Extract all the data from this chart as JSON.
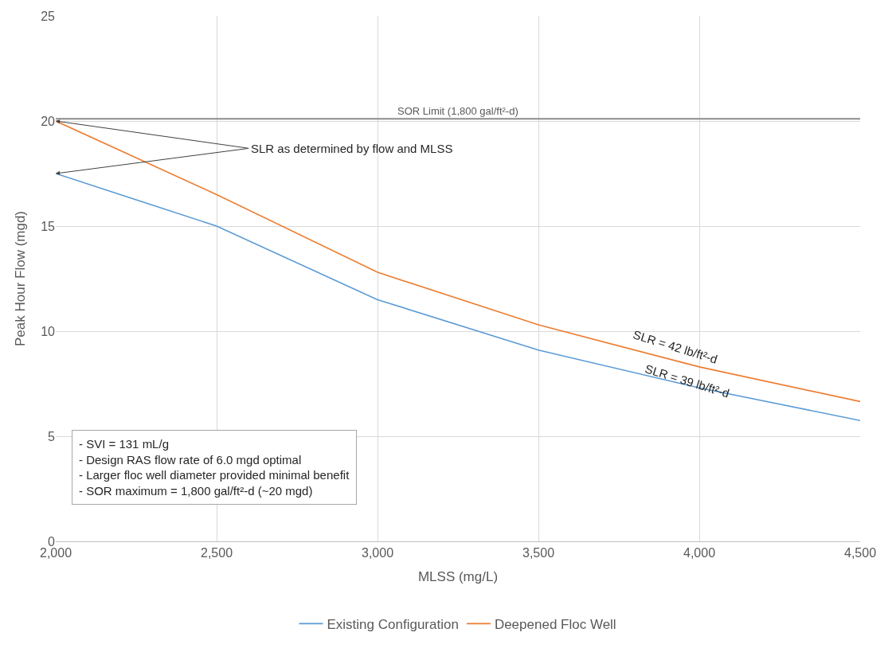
{
  "chart_data": {
    "type": "line",
    "xlabel": "MLSS (mg/L)",
    "ylabel": "Peak Hour Flow (mgd)",
    "x": [
      2000,
      2500,
      3000,
      3500,
      4000,
      4500
    ],
    "series": [
      {
        "name": "Existing Configuration",
        "color": "#5b9bd5",
        "values": [
          17.5,
          15.0,
          11.5,
          9.1,
          7.3,
          5.75
        ]
      },
      {
        "name": "Deepened Floc Well",
        "color": "#ed7d31",
        "values": [
          20.0,
          16.5,
          12.8,
          10.3,
          8.3,
          6.65
        ]
      }
    ],
    "xlim": [
      2000,
      4500
    ],
    "xticks": [
      {
        "value": 2000,
        "label": "2,000"
      },
      {
        "value": 2500,
        "label": "2,500"
      },
      {
        "value": 3000,
        "label": "3,000"
      },
      {
        "value": 3500,
        "label": "3,500"
      },
      {
        "value": 4000,
        "label": "4,000"
      },
      {
        "value": 4500,
        "label": "4,500"
      }
    ],
    "ylim": [
      0,
      25
    ],
    "yticks": [
      0,
      5,
      10,
      15,
      20,
      25
    ],
    "ref_lines": [
      {
        "axis": "y",
        "value": 20.1,
        "label": "SOR Limit (1,800 gal/ft²-d)",
        "color": "#8c8c8c"
      }
    ],
    "annotations": [
      {
        "text": "SLR as determined by flow and MLSS",
        "x": 2000,
        "y": 20.0
      },
      "SLR = 42 lb/ft²-d",
      "SLR = 39 lb/ft²-d",
      "- SVI = 131 mL/g\n- Design RAS flow rate of 6.0 mgd optimal\n- Larger floc well diameter provided minimal benefit\n- SOR maximum = 1,800 gal/ft²-d (~20 mgd)"
    ],
    "grid": true,
    "legend": "bottom",
    "marker": "none",
    "line_style": "solid"
  }
}
